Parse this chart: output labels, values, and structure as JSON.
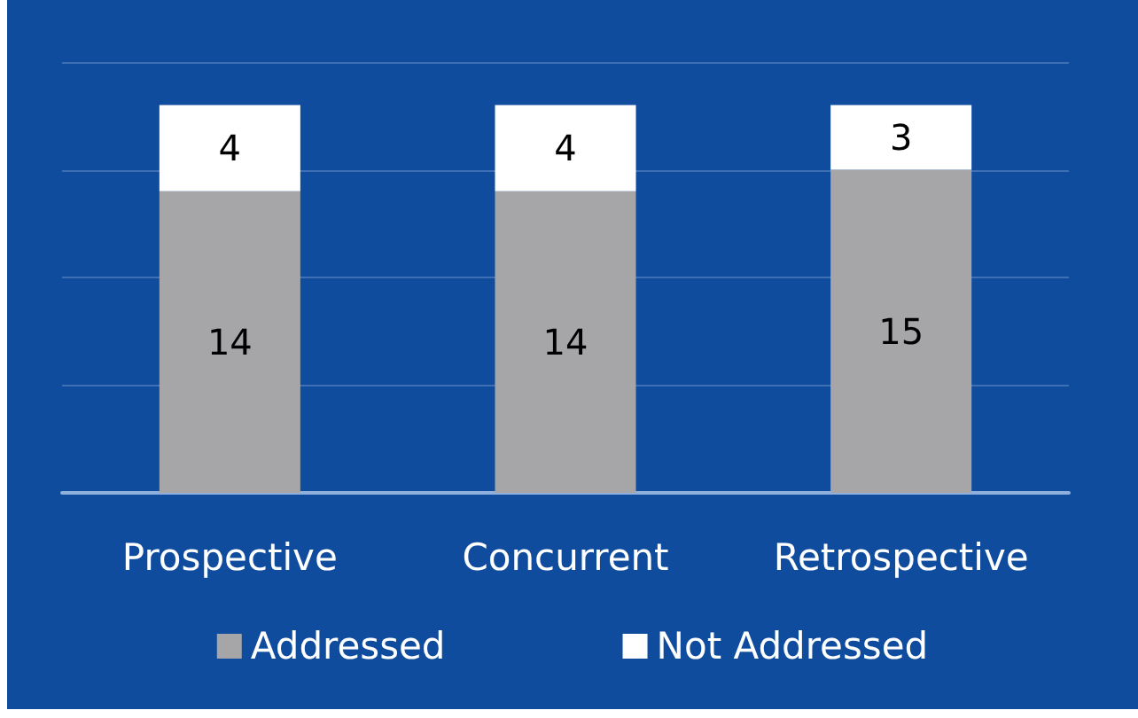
{
  "chart_data": {
    "type": "bar",
    "stacked": true,
    "categories": [
      "Prospective",
      "Concurrent",
      "Retrospective"
    ],
    "series": [
      {
        "name": "Addressed",
        "color": "#a6a6a8",
        "values": [
          14,
          14,
          15
        ]
      },
      {
        "name": "Not Addressed",
        "color": "#ffffff",
        "values": [
          4,
          4,
          3
        ]
      }
    ],
    "ylim": [
      0,
      20
    ],
    "yticks": [
      {
        "value": 0,
        "label": null
      },
      {
        "value": 5,
        "label": null
      },
      {
        "value": 10,
        "label": null
      },
      {
        "value": 15,
        "label": null
      },
      {
        "value": 20,
        "label": null
      }
    ],
    "tick_labels": "x",
    "grid": "y",
    "legend": "bottom",
    "data_labels": true
  }
}
